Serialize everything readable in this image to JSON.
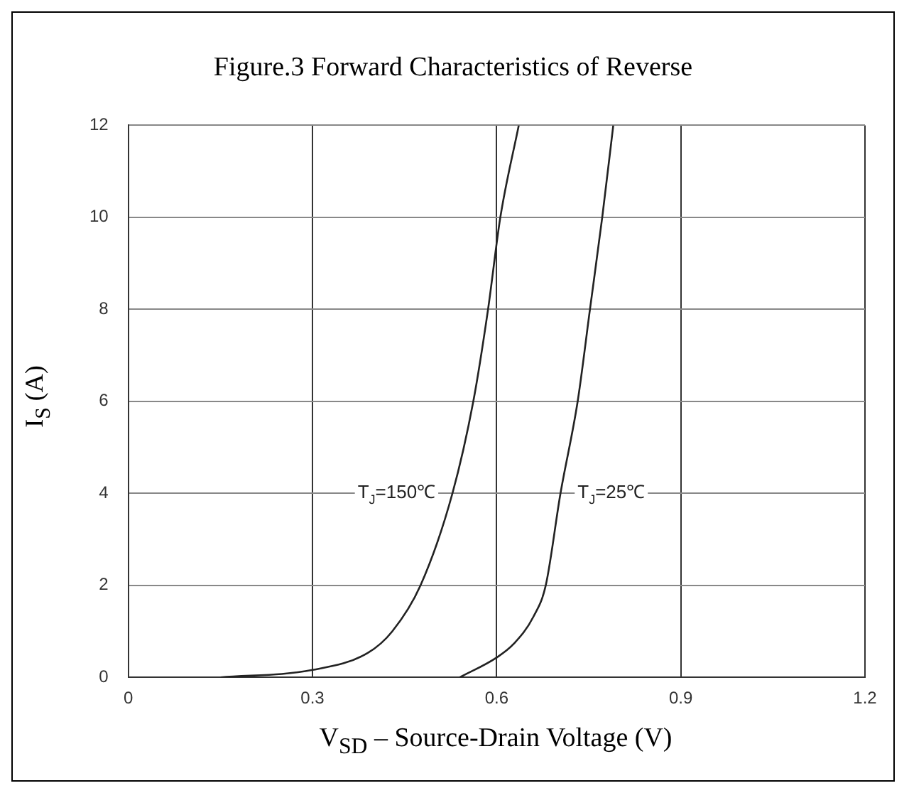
{
  "chart_data": {
    "type": "line",
    "title": "Figure.3 Forward Characteristics of Reverse",
    "xlabel": "V$_{SD}$ – Source-Drain Voltage (V)",
    "ylabel": "I$_{S}$ (A)",
    "series": [
      {
        "name": "T$_{J}$=150℃",
        "color": "#222222",
        "x": [
          0.15,
          0.3,
          0.39,
          0.43,
          0.476,
          0.528,
          0.562,
          0.586,
          0.606,
          0.636
        ],
        "values": [
          0,
          0.16,
          0.53,
          1.0,
          2.0,
          4.0,
          6.0,
          8.0,
          10.0,
          12.0
        ]
      },
      {
        "name": "T$_{J}$=25℃",
        "color": "#222222",
        "x": [
          0.54,
          0.6,
          0.628,
          0.66,
          0.68,
          0.704,
          0.732,
          0.752,
          0.772,
          0.79
        ],
        "values": [
          0,
          0.43,
          0.73,
          1.32,
          2.0,
          4.0,
          6.0,
          8.0,
          10.0,
          12.0
        ]
      }
    ],
    "xlim": [
      0,
      1.2
    ],
    "xticks": [
      0,
      0.3,
      0.6,
      0.9,
      1.2
    ],
    "ylim": [
      0,
      12
    ],
    "yticks": [
      0,
      2,
      4,
      6,
      8,
      10,
      12
    ],
    "grid": true,
    "legend": false,
    "marker": "none",
    "line_style": "solid"
  }
}
